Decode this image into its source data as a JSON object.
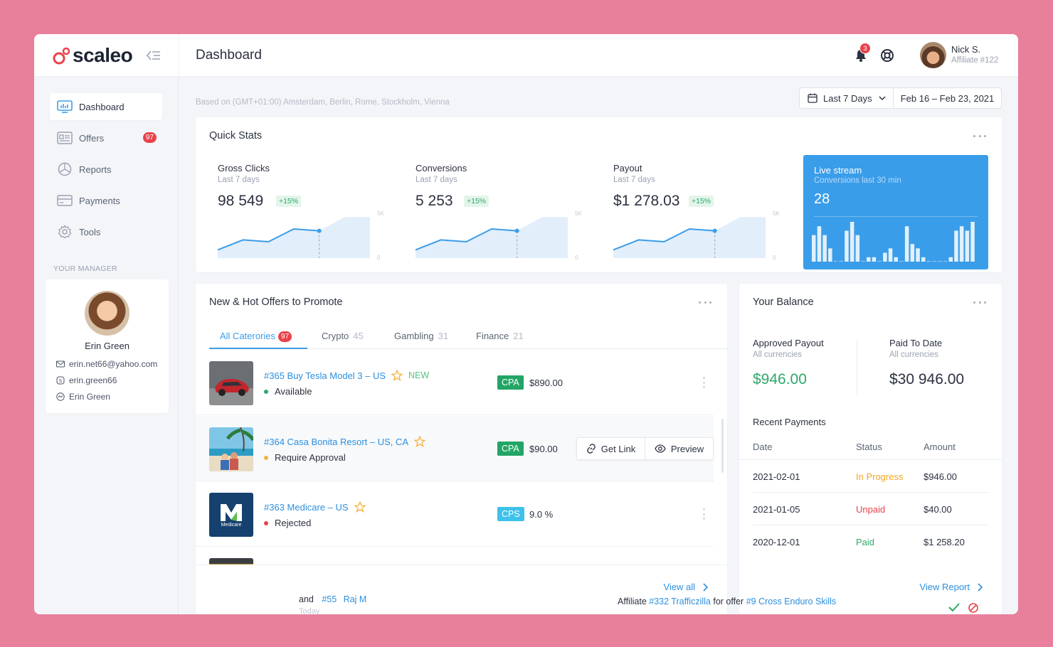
{
  "brand": {
    "name": "scaleo"
  },
  "sidebar": {
    "items": [
      {
        "label": "Dashboard",
        "icon": "dashboard-icon"
      },
      {
        "label": "Offers",
        "icon": "offers-icon",
        "badge": "97"
      },
      {
        "label": "Reports",
        "icon": "reports-icon"
      },
      {
        "label": "Payments",
        "icon": "payments-icon"
      },
      {
        "label": "Tools",
        "icon": "gear-icon"
      }
    ],
    "manager_section": "YOUR MANAGER",
    "manager": {
      "name": "Erin Green",
      "email": "erin.net66@yahoo.com",
      "skype": "erin.green66",
      "messenger": "Erin Green"
    }
  },
  "header": {
    "title": "Dashboard",
    "notifications": "3",
    "user": {
      "name": "Nick S.",
      "role": "Affiliate #122"
    }
  },
  "filters": {
    "timezone": "Based on (GMT+01:00) Amsterdam, Berlin, Rome, Stockholm, Vienna",
    "range": "Last 7 Days",
    "dates": "Feb 16 – Feb 23, 2021"
  },
  "quick_stats": {
    "title": "Quick Stats",
    "stats": [
      {
        "label": "Gross Clicks",
        "sub": "Last 7 days",
        "value": "98 549",
        "change": "+15%"
      },
      {
        "label": "Conversions",
        "sub": "Last 7 days",
        "value": "5 253",
        "change": "+15%"
      },
      {
        "label": "Payout",
        "sub": "Last 7 days",
        "value": "$1 278.03",
        "change": "+15%"
      }
    ],
    "axis": {
      "max": "5K",
      "min": "0"
    },
    "live": {
      "title": "Live stream",
      "sub": "Conversions last 30 min",
      "value": "28"
    }
  },
  "chart_data": [
    {
      "type": "area",
      "ylim": [
        0,
        5000
      ],
      "x": [
        1,
        2,
        3,
        4,
        5,
        6,
        7
      ],
      "values": [
        900,
        2000,
        1800,
        3200,
        3000,
        4500,
        4500
      ]
    },
    {
      "type": "area",
      "ylim": [
        0,
        5000
      ],
      "x": [
        1,
        2,
        3,
        4,
        5,
        6,
        7
      ],
      "values": [
        900,
        2000,
        1800,
        3200,
        3000,
        4500,
        4500
      ]
    },
    {
      "type": "area",
      "ylim": [
        0,
        5000
      ],
      "x": [
        1,
        2,
        3,
        4,
        5,
        6,
        7
      ],
      "values": [
        900,
        2000,
        1800,
        3200,
        3000,
        4500,
        4500
      ]
    },
    {
      "type": "bar",
      "values": [
        6,
        8,
        6,
        3,
        0,
        0,
        7,
        9,
        6,
        0,
        1,
        1,
        0,
        2,
        3,
        1,
        0,
        8,
        4,
        3,
        1,
        0,
        0,
        0,
        0,
        1,
        7,
        8,
        7,
        9
      ]
    }
  ],
  "offers": {
    "title": "New & Hot Offers to Promote",
    "tabs": [
      {
        "label": "All Caterories",
        "count": "97"
      },
      {
        "label": "Crypto",
        "count": "45"
      },
      {
        "label": "Gambling",
        "count": "31"
      },
      {
        "label": "Finance",
        "count": "21"
      }
    ],
    "items": [
      {
        "title": "#365  Buy Tesla Model 3 – US",
        "new": "NEW",
        "status": "Available",
        "status_color": "#2ea86a",
        "type": "CPA",
        "type_color": "#22a565",
        "price": "$890.00"
      },
      {
        "title": "#364 Casa Bonita Resort – US, CA",
        "status": "Require Approval",
        "status_color": "#f5b340",
        "type": "CPA",
        "type_color": "#22a565",
        "price": "$90.00",
        "actions": {
          "get_link": "Get Link",
          "preview": "Preview"
        }
      },
      {
        "title": "#363 Medicare – US",
        "status": "Rejected",
        "status_color": "#e9424b",
        "type": "CPS",
        "type_color": "#3ec1ea",
        "price": "9.0 %",
        "logo_text": "Medicare"
      }
    ],
    "view_all": "View all"
  },
  "balance": {
    "title": "Your Balance",
    "approved": {
      "label": "Approved Payout",
      "sub": "All currencies",
      "value": "$946.00"
    },
    "paid": {
      "label": "Paid To Date",
      "sub": "All currencies",
      "value": "$30 946.00"
    },
    "recent_title": "Recent Payments",
    "columns": [
      "Date",
      "Status",
      "Amount"
    ],
    "rows": [
      {
        "date": "2021-02-01",
        "status": "In Progress",
        "status_color": "#f5a524",
        "amount": "$946.00"
      },
      {
        "date": "2021-01-05",
        "status": "Unpaid",
        "status_color": "#e9424b",
        "amount": "$40.00"
      },
      {
        "date": "2020-12-01",
        "status": "Paid",
        "status_color": "#2ea86a",
        "amount": "$1 258.20"
      }
    ],
    "view_report": "View Report"
  },
  "bottom": {
    "left_and": "and",
    "left_id": "#55",
    "left_name": "Raj M",
    "left_time": "Today",
    "right_prefix": "Affiliate",
    "right_aff": "#332 Trafficzilla",
    "right_mid": "for offer",
    "right_offer_id": "#9",
    "right_offer": "Cross Enduro Skills"
  },
  "colors": {
    "accent": "#3a9de9",
    "background": "#e87f9b",
    "success": "#2ea86a",
    "danger": "#e9424b"
  }
}
